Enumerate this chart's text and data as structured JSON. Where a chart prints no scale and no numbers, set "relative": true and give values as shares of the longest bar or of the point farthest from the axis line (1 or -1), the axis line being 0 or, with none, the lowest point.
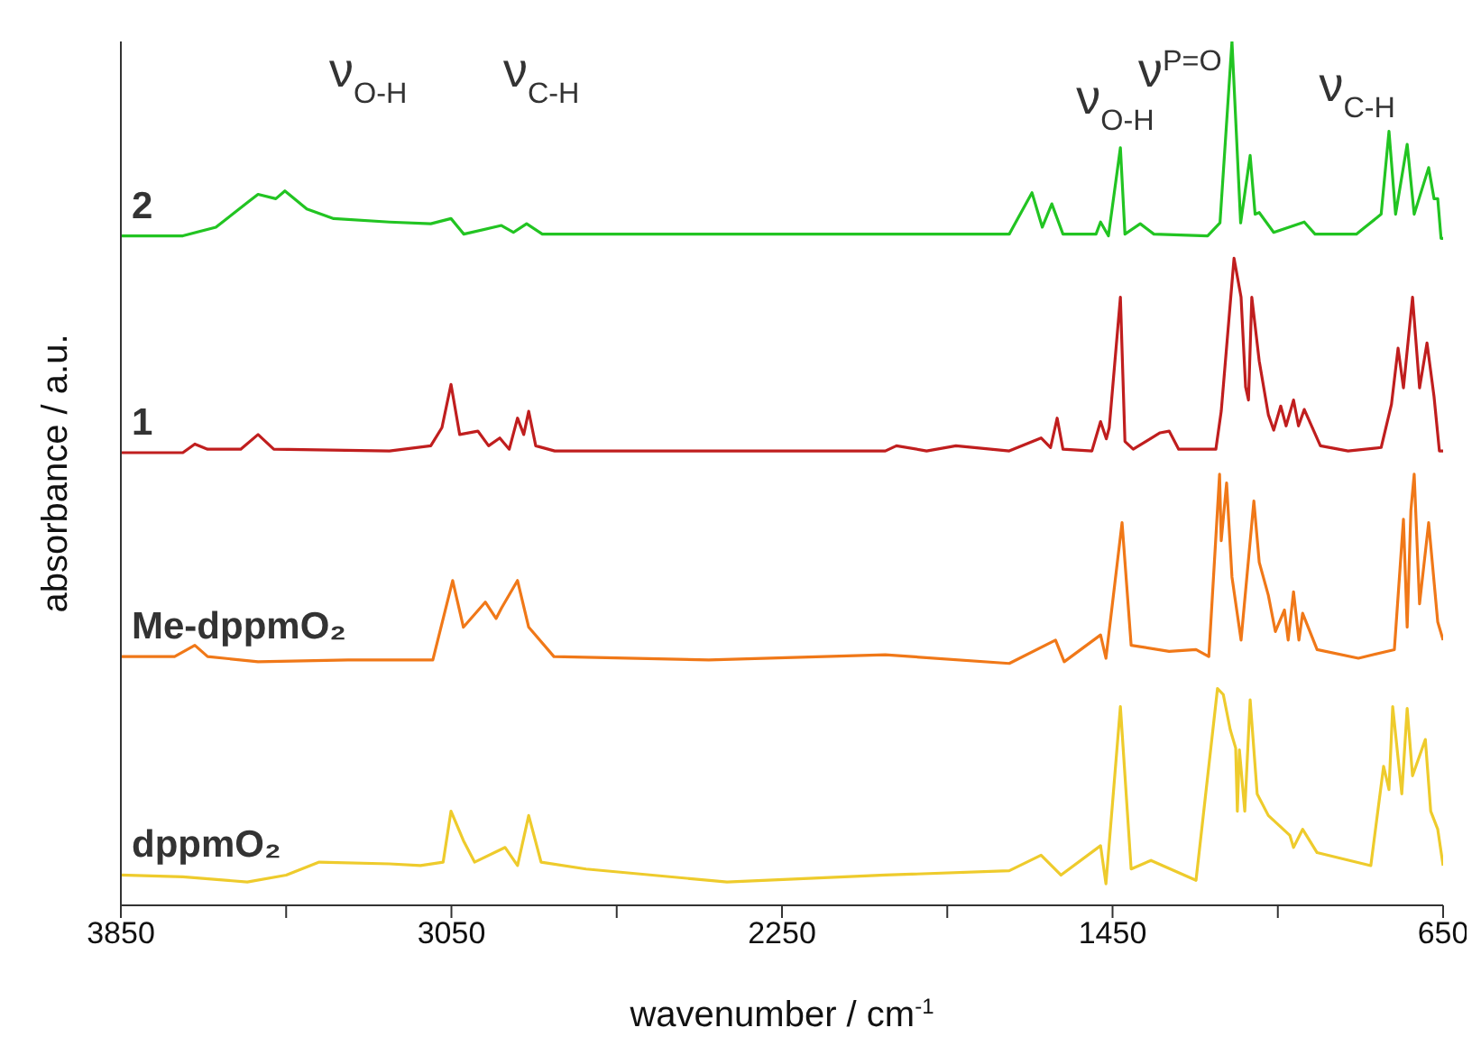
{
  "chart_data": {
    "type": "line",
    "relative": true,
    "xlabel": "wavenumber / cm$^{-1}$",
    "ylabel": "absorbance / a.u.",
    "xlim": [
      3850,
      650
    ],
    "xticks": [
      3850,
      {
        "value": 3450,
        "label": null
      },
      3050,
      {
        "value": 2650,
        "label": null
      },
      2250,
      {
        "value": 1850,
        "label": null
      },
      1450,
      {
        "value": 1050,
        "label": null
      },
      650
    ],
    "annotations": [
      "ν$_{O-H}$",
      "ν$_{C-H}$",
      "ν$_{O-H}$",
      "ν$^{P=O}$",
      "ν$_{C-H}$"
    ],
    "series": [
      {
        "name": "2",
        "color": "#22c422",
        "x": [
          3850,
          3700,
          3620,
          3540,
          3518,
          3475,
          3453,
          3400,
          3335,
          3200,
          3100,
          3051,
          3020,
          2929,
          2900,
          2868,
          2830,
          2400,
          1700,
          1645,
          1620,
          1597,
          1570,
          1490,
          1479,
          1460,
          1431,
          1420,
          1383,
          1350,
          1220,
          1190,
          1161,
          1140,
          1117,
          1105,
          1095,
          1060,
          986,
          960,
          860,
          800,
          781,
          765,
          737,
          720,
          685,
          672,
          663,
          655,
          650
        ],
        "values": [
          0.775,
          0.775,
          0.785,
          0.815,
          0.823,
          0.818,
          0.827,
          0.806,
          0.795,
          0.791,
          0.789,
          0.795,
          0.777,
          0.787,
          0.779,
          0.789,
          0.777,
          0.777,
          0.777,
          0.825,
          0.785,
          0.812,
          0.777,
          0.777,
          0.791,
          0.775,
          0.877,
          0.777,
          0.789,
          0.777,
          0.775,
          0.79,
          1.0,
          0.79,
          0.868,
          0.8,
          0.802,
          0.779,
          0.791,
          0.777,
          0.777,
          0.8,
          0.896,
          0.8,
          0.881,
          0.8,
          0.854,
          0.818,
          0.818,
          0.772,
          0.772
        ]
      },
      {
        "name": "1",
        "color": "#c01e1e",
        "x": [
          3850,
          3700,
          3671,
          3640,
          3560,
          3518,
          3480,
          3200,
          3100,
          3073,
          3051,
          3030,
          2986,
          2960,
          2933,
          2910,
          2890,
          2875,
          2863,
          2846,
          2800,
          2000,
          1973,
          1900,
          1829,
          1700,
          1623,
          1600,
          1584,
          1570,
          1500,
          1479,
          1465,
          1458,
          1431,
          1420,
          1400,
          1335,
          1313,
          1290,
          1200,
          1187,
          1156,
          1139,
          1128,
          1121,
          1113,
          1095,
          1073,
          1060,
          1043,
          1030,
          1012,
          1000,
          986,
          947,
          880,
          800,
          775,
          759,
          746,
          724,
          707,
          689,
          672,
          659,
          650
        ],
        "values": [
          0.524,
          0.524,
          0.534,
          0.528,
          0.528,
          0.545,
          0.528,
          0.526,
          0.532,
          0.553,
          0.603,
          0.545,
          0.549,
          0.532,
          0.541,
          0.528,
          0.564,
          0.545,
          0.572,
          0.532,
          0.526,
          0.526,
          0.532,
          0.526,
          0.532,
          0.526,
          0.541,
          0.53,
          0.564,
          0.528,
          0.526,
          0.56,
          0.54,
          0.553,
          0.704,
          0.537,
          0.528,
          0.547,
          0.549,
          0.528,
          0.528,
          0.572,
          0.749,
          0.704,
          0.6,
          0.585,
          0.704,
          0.63,
          0.568,
          0.55,
          0.578,
          0.555,
          0.585,
          0.555,
          0.574,
          0.532,
          0.526,
          0.53,
          0.58,
          0.645,
          0.599,
          0.704,
          0.599,
          0.651,
          0.589,
          0.526,
          0.526
        ]
      },
      {
        "name": "Me-dppmO₂",
        "color": "#f07818",
        "x": [
          3850,
          3720,
          3671,
          3640,
          3518,
          3300,
          3095,
          3047,
          3021,
          2968,
          2942,
          2929,
          2890,
          2863,
          2802,
          2427,
          2000,
          1700,
          1588,
          1567,
          1479,
          1466,
          1427,
          1405,
          1313,
          1248,
          1217,
          1191,
          1187,
          1174,
          1161,
          1139,
          1108,
          1095,
          1073,
          1056,
          1034,
          1025,
          1012,
          999,
          990,
          955,
          855,
          768,
          746,
          737,
          728,
          720,
          707,
          685,
          663,
          650
        ],
        "values": [
          0.288,
          0.288,
          0.301,
          0.288,
          0.282,
          0.284,
          0.284,
          0.376,
          0.322,
          0.351,
          0.332,
          0.344,
          0.376,
          0.322,
          0.288,
          0.284,
          0.29,
          0.28,
          0.307,
          0.282,
          0.313,
          0.286,
          0.443,
          0.301,
          0.294,
          0.296,
          0.288,
          0.499,
          0.422,
          0.489,
          0.38,
          0.307,
          0.468,
          0.397,
          0.359,
          0.317,
          0.342,
          0.307,
          0.363,
          0.307,
          0.338,
          0.296,
          0.286,
          0.296,
          0.447,
          0.322,
          0.457,
          0.499,
          0.349,
          0.443,
          0.328,
          0.307
        ]
      },
      {
        "name": "dppmO₂",
        "color": "#eecb2c",
        "x": [
          3850,
          3700,
          3544,
          3450,
          3370,
          3200,
          3125,
          3070,
          3051,
          3021,
          2994,
          2920,
          2890,
          2863,
          2833,
          2724,
          2383,
          2000,
          1700,
          1623,
          1575,
          1479,
          1466,
          1431,
          1405,
          1357,
          1248,
          1196,
          1182,
          1165,
          1152,
          1148,
          1143,
          1130,
          1117,
          1100,
          1073,
          1021,
          1012,
          990,
          955,
          825,
          794,
          781,
          772,
          750,
          737,
          724,
          693,
          680,
          663,
          650
        ],
        "values": [
          0.035,
          0.033,
          0.027,
          0.035,
          0.05,
          0.048,
          0.046,
          0.05,
          0.109,
          0.075,
          0.05,
          0.067,
          0.046,
          0.104,
          0.05,
          0.042,
          0.027,
          0.035,
          0.04,
          0.058,
          0.035,
          0.069,
          0.025,
          0.23,
          0.042,
          0.052,
          0.029,
          0.251,
          0.244,
          0.203,
          0.182,
          0.109,
          0.18,
          0.109,
          0.238,
          0.129,
          0.104,
          0.081,
          0.067,
          0.088,
          0.061,
          0.046,
          0.161,
          0.134,
          0.23,
          0.129,
          0.228,
          0.15,
          0.192,
          0.109,
          0.088,
          0.046
        ]
      }
    ]
  }
}
